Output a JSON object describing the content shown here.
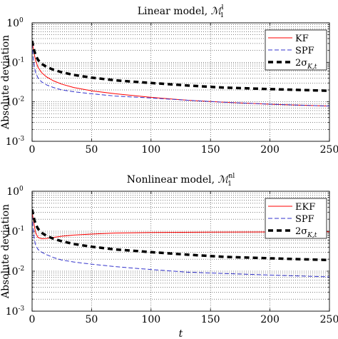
{
  "chart_data": [
    {
      "type": "line",
      "title": "Linear model, ℳ₁ˡ",
      "title_main": "Linear model, ",
      "title_math": "ℳ",
      "title_sub": "1",
      "title_sup": "l",
      "xlabel": "",
      "ylabel": "Absolute deviation",
      "xlim": [
        0,
        250
      ],
      "ylim": [
        0.001,
        1
      ],
      "yscale": "log",
      "grid": true,
      "legend_position": "top-right",
      "xticks": [
        0,
        50,
        100,
        150,
        200,
        250
      ],
      "xtick_labels": [
        "0",
        "50",
        "100",
        "150",
        "200",
        "250"
      ],
      "ytick_labels": [
        {
          "base": "10",
          "exp": "0",
          "value": 1
        },
        {
          "base": "10",
          "exp": "-1",
          "value": 0.1
        },
        {
          "base": "10",
          "exp": "-2",
          "value": 0.01
        },
        {
          "base": "10",
          "exp": "-3",
          "value": 0.001
        }
      ],
      "series": [
        {
          "name": "KF",
          "color": "#ff0000",
          "style": "solid",
          "x": [
            0,
            1,
            2,
            3,
            5,
            8,
            12,
            18,
            25,
            35,
            50,
            70,
            100,
            130,
            160,
            200,
            250
          ],
          "y": [
            0.35,
            0.22,
            0.15,
            0.11,
            0.075,
            0.055,
            0.043,
            0.034,
            0.028,
            0.023,
            0.019,
            0.016,
            0.013,
            0.011,
            0.0098,
            0.0087,
            0.0078
          ]
        },
        {
          "name": "SPF",
          "color": "#3333cc",
          "style": "dashed",
          "x": [
            0,
            1,
            2,
            3,
            5,
            8,
            12,
            18,
            25,
            35,
            50,
            70,
            100,
            130,
            160,
            200,
            250
          ],
          "y": [
            0.3,
            0.12,
            0.075,
            0.055,
            0.04,
            0.032,
            0.027,
            0.023,
            0.02,
            0.018,
            0.016,
            0.014,
            0.0125,
            0.011,
            0.0098,
            0.0087,
            0.0078
          ]
        },
        {
          "name": "2σ",
          "name_sub": "K,t",
          "color": "#000000",
          "style": "thick-dashed",
          "x": [
            0,
            1,
            2,
            3,
            5,
            8,
            12,
            18,
            25,
            35,
            50,
            70,
            100,
            130,
            160,
            200,
            250
          ],
          "y": [
            0.35,
            0.25,
            0.19,
            0.15,
            0.115,
            0.092,
            0.077,
            0.065,
            0.056,
            0.048,
            0.041,
            0.035,
            0.03,
            0.026,
            0.023,
            0.021,
            0.019
          ]
        }
      ]
    },
    {
      "type": "line",
      "title": "Nonlinear model, ℳ₁ⁿˡ",
      "title_main": "Nonlinear model, ",
      "title_math": "ℳ",
      "title_sub": "1",
      "title_sup": "nl",
      "xlabel": "t",
      "ylabel": "Absolute deviation",
      "xlim": [
        0,
        250
      ],
      "ylim": [
        0.001,
        1
      ],
      "yscale": "log",
      "grid": true,
      "legend_position": "top-right",
      "xticks": [
        0,
        50,
        100,
        150,
        200,
        250
      ],
      "xtick_labels": [
        "0",
        "50",
        "100",
        "150",
        "200",
        "250"
      ],
      "ytick_labels": [
        {
          "base": "10",
          "exp": "0",
          "value": 1
        },
        {
          "base": "10",
          "exp": "-1",
          "value": 0.1
        },
        {
          "base": "10",
          "exp": "-2",
          "value": 0.01
        },
        {
          "base": "10",
          "exp": "-3",
          "value": 0.001
        }
      ],
      "series": [
        {
          "name": "EKF",
          "color": "#ff0000",
          "style": "solid",
          "x": [
            0,
            1,
            2,
            3,
            5,
            8,
            12,
            18,
            25,
            35,
            50,
            70,
            100,
            150,
            200,
            250
          ],
          "y": [
            0.3,
            0.2,
            0.13,
            0.09,
            0.07,
            0.065,
            0.066,
            0.07,
            0.075,
            0.08,
            0.085,
            0.09,
            0.093,
            0.095,
            0.096,
            0.097
          ]
        },
        {
          "name": "SPF",
          "color": "#3333cc",
          "style": "dashed",
          "x": [
            0,
            1,
            2,
            3,
            5,
            8,
            12,
            18,
            25,
            35,
            50,
            70,
            100,
            130,
            160,
            200,
            250
          ],
          "y": [
            0.25,
            0.1,
            0.06,
            0.045,
            0.035,
            0.03,
            0.026,
            0.022,
            0.019,
            0.017,
            0.015,
            0.013,
            0.011,
            0.0095,
            0.0088,
            0.008,
            0.0072
          ]
        },
        {
          "name": "2σ",
          "name_sub": "K,t",
          "color": "#000000",
          "style": "thick-dashed",
          "x": [
            0,
            1,
            2,
            3,
            5,
            8,
            12,
            18,
            25,
            35,
            50,
            70,
            100,
            130,
            160,
            200,
            250
          ],
          "y": [
            0.35,
            0.25,
            0.19,
            0.15,
            0.115,
            0.092,
            0.077,
            0.065,
            0.056,
            0.048,
            0.041,
            0.035,
            0.03,
            0.026,
            0.023,
            0.021,
            0.019
          ]
        }
      ]
    }
  ]
}
